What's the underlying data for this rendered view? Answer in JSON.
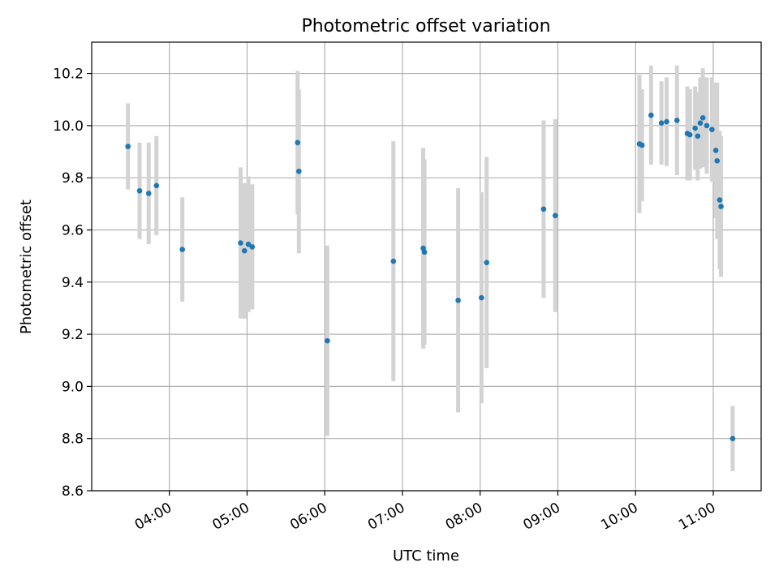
{
  "chart_data": {
    "type": "scatter",
    "title": "Photometric offset variation",
    "xlabel": "UTC time",
    "ylabel": "Photometric offset",
    "x_axis_type": "time",
    "xlim": [
      "03:00",
      "11:37"
    ],
    "ylim": [
      8.6,
      10.32
    ],
    "grid": true,
    "legend": "none",
    "x_ticks": [
      {
        "label": "04:00",
        "value": "04:00"
      },
      {
        "label": "05:00",
        "value": "05:00"
      },
      {
        "label": "06:00",
        "value": "06:00"
      },
      {
        "label": "07:00",
        "value": "07:00"
      },
      {
        "label": "08:00",
        "value": "08:00"
      },
      {
        "label": "09:00",
        "value": "09:00"
      },
      {
        "label": "10:00",
        "value": "10:00"
      },
      {
        "label": "11:00",
        "value": "11:00"
      }
    ],
    "y_ticks": [
      {
        "label": "8.6",
        "value": 8.6
      },
      {
        "label": "8.8",
        "value": 8.8
      },
      {
        "label": "9.0",
        "value": 9.0
      },
      {
        "label": "9.2",
        "value": 9.2
      },
      {
        "label": "9.4",
        "value": 9.4
      },
      {
        "label": "9.6",
        "value": 9.6
      },
      {
        "label": "9.8",
        "value": 9.8
      },
      {
        "label": "10.0",
        "value": 10.0
      },
      {
        "label": "10.2",
        "value": 10.2
      }
    ],
    "colors": {
      "marker": "#1f77b4",
      "errorbar": "#d3d3d3",
      "grid": "#b0b0b0"
    },
    "series": [
      {
        "points": [
          {
            "x": "03:28",
            "y": 9.92,
            "err": 0.165
          },
          {
            "x": "03:37",
            "y": 9.75,
            "err": 0.185
          },
          {
            "x": "03:44",
            "y": 9.74,
            "err": 0.195
          },
          {
            "x": "03:50",
            "y": 9.77,
            "err": 0.19
          },
          {
            "x": "04:10",
            "y": 9.525,
            "err": 0.2
          },
          {
            "x": "04:55",
            "y": 9.55,
            "err": 0.29
          },
          {
            "x": "04:58",
            "y": 9.52,
            "err": 0.26
          },
          {
            "x": "05:01",
            "y": 9.545,
            "err": 0.26
          },
          {
            "x": "05:04",
            "y": 9.535,
            "err": 0.24
          },
          {
            "x": "05:39",
            "y": 9.935,
            "err": 0.275
          },
          {
            "x": "05:40",
            "y": 9.825,
            "err": 0.315
          },
          {
            "x": "06:02",
            "y": 9.175,
            "err": 0.365
          },
          {
            "x": "06:53",
            "y": 9.48,
            "err": 0.46
          },
          {
            "x": "07:16",
            "y": 9.53,
            "err": 0.385
          },
          {
            "x": "07:17",
            "y": 9.515,
            "err": 0.355
          },
          {
            "x": "07:43",
            "y": 9.33,
            "err": 0.43
          },
          {
            "x": "08:01",
            "y": 9.34,
            "err": 0.405
          },
          {
            "x": "08:05",
            "y": 9.475,
            "err": 0.405
          },
          {
            "x": "08:49",
            "y": 9.68,
            "err": 0.34
          },
          {
            "x": "08:58",
            "y": 9.655,
            "err": 0.37
          },
          {
            "x": "10:03",
            "y": 9.93,
            "err": 0.265
          },
          {
            "x": "10:05",
            "y": 9.925,
            "err": 0.215
          },
          {
            "x": "10:12",
            "y": 10.04,
            "err": 0.19
          },
          {
            "x": "10:20",
            "y": 10.01,
            "err": 0.16
          },
          {
            "x": "10:24",
            "y": 10.015,
            "err": 0.17
          },
          {
            "x": "10:32",
            "y": 10.02,
            "err": 0.21
          },
          {
            "x": "10:40",
            "y": 9.97,
            "err": 0.18
          },
          {
            "x": "10:42",
            "y": 9.965,
            "err": 0.175
          },
          {
            "x": "10:46",
            "y": 9.99,
            "err": 0.16
          },
          {
            "x": "10:48",
            "y": 9.96,
            "err": 0.17
          },
          {
            "x": "10:50",
            "y": 10.01,
            "err": 0.175
          },
          {
            "x": "10:52",
            "y": 10.03,
            "err": 0.19
          },
          {
            "x": "10:55",
            "y": 10.0,
            "err": 0.185
          },
          {
            "x": "10:59",
            "y": 9.985,
            "err": 0.2
          },
          {
            "x": "11:02",
            "y": 9.905,
            "err": 0.26
          },
          {
            "x": "11:03",
            "y": 9.865,
            "err": 0.3
          },
          {
            "x": "11:05",
            "y": 9.715,
            "err": 0.265
          },
          {
            "x": "11:06",
            "y": 9.69,
            "err": 0.27
          },
          {
            "x": "11:15",
            "y": 8.8,
            "err": 0.125
          }
        ]
      }
    ]
  }
}
